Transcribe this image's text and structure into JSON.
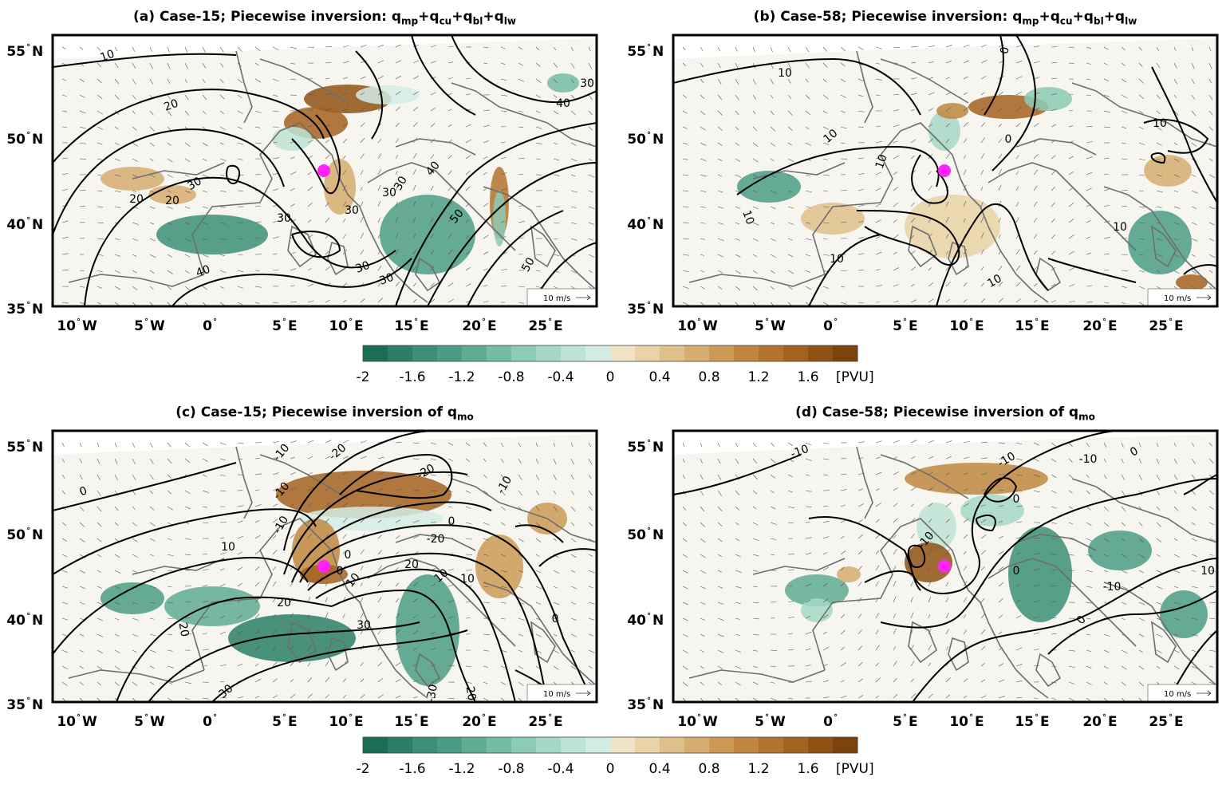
{
  "panels": [
    {
      "id": "a",
      "title_prefix": "(a) Case-15; Piecewise inversion: ",
      "title_terms": [
        [
          "q",
          "mp"
        ],
        [
          "+q",
          "cu"
        ],
        [
          "+q",
          "bl"
        ],
        [
          "+q",
          "lw"
        ]
      ],
      "contour_labels": [
        "10",
        "20",
        "20",
        "20",
        "30",
        "30",
        "30",
        "30",
        "30",
        "30",
        "30",
        "40",
        "40",
        "40",
        "50",
        "50",
        "20",
        "30"
      ]
    },
    {
      "id": "b",
      "title_prefix": "(b) Case-58; Piecewise inversion: ",
      "title_terms": [
        [
          "q",
          "mp"
        ],
        [
          "+q",
          "cu"
        ],
        [
          "+q",
          "bl"
        ],
        [
          "+q",
          "lw"
        ]
      ],
      "contour_labels": [
        "10",
        "10",
        "10",
        "10",
        "10",
        "10",
        "10",
        "10",
        "0",
        "0"
      ]
    },
    {
      "id": "c",
      "title_prefix": "(c) Case-15; Piecewise inversion of ",
      "title_terms": [
        [
          "q",
          "mo"
        ]
      ],
      "contour_labels": [
        "0",
        "-10",
        "-20",
        "-10",
        "-20",
        "-10",
        "0",
        "0",
        "10",
        "-10",
        "0",
        "10",
        "10",
        "20",
        "20",
        "10",
        "20",
        "30",
        "30",
        "-20",
        "-30",
        "20",
        "0"
      ]
    },
    {
      "id": "d",
      "title_prefix": "(d) Case-58; Piecewise inversion of ",
      "title_terms": [
        [
          "q",
          "mo"
        ]
      ],
      "contour_labels": [
        "-10",
        "-10",
        "0",
        "-10",
        "0",
        "0",
        "-10",
        "-10",
        "0",
        "10"
      ]
    }
  ],
  "lat_ticks": [
    "55 N",
    "50 N",
    "40 N",
    "35 N"
  ],
  "lat_ticks_all": [
    "55",
    "50",
    "40",
    "35"
  ],
  "lon_ticks": [
    "10 W",
    "5 W",
    "0",
    "5 E",
    "10 E",
    "15 E",
    "20 E",
    "25 E"
  ],
  "ref_vector": "10 m/s",
  "colorbar": {
    "ticks": [
      "-2",
      "-1.6",
      "-1.2",
      "-0.8",
      "-0.4",
      "0",
      "0.4",
      "0.8",
      "1.2",
      "1.6"
    ],
    "unit": "[PVU]",
    "range": [
      -2,
      2
    ],
    "colors_neg": [
      "#1b6e56",
      "#2a7f66",
      "#3b8f76",
      "#4b9c84",
      "#5fac93",
      "#74bca3",
      "#8ccbb4",
      "#a6d8c6",
      "#bde3d6",
      "#d2ece4",
      "#e6f2ee"
    ],
    "colors_pos": [
      "#f6f1e4",
      "#f0e3c6",
      "#e8d2a6",
      "#dfc08a",
      "#d6ad6e",
      "#cc9a55",
      "#c08640",
      "#b3732e",
      "#a3621f",
      "#905114",
      "#7a430c"
    ]
  },
  "colors": {
    "contour": "#000000",
    "coast": "#6e6e6e",
    "marker": "#ff22ff",
    "arrow": "#555555"
  }
}
